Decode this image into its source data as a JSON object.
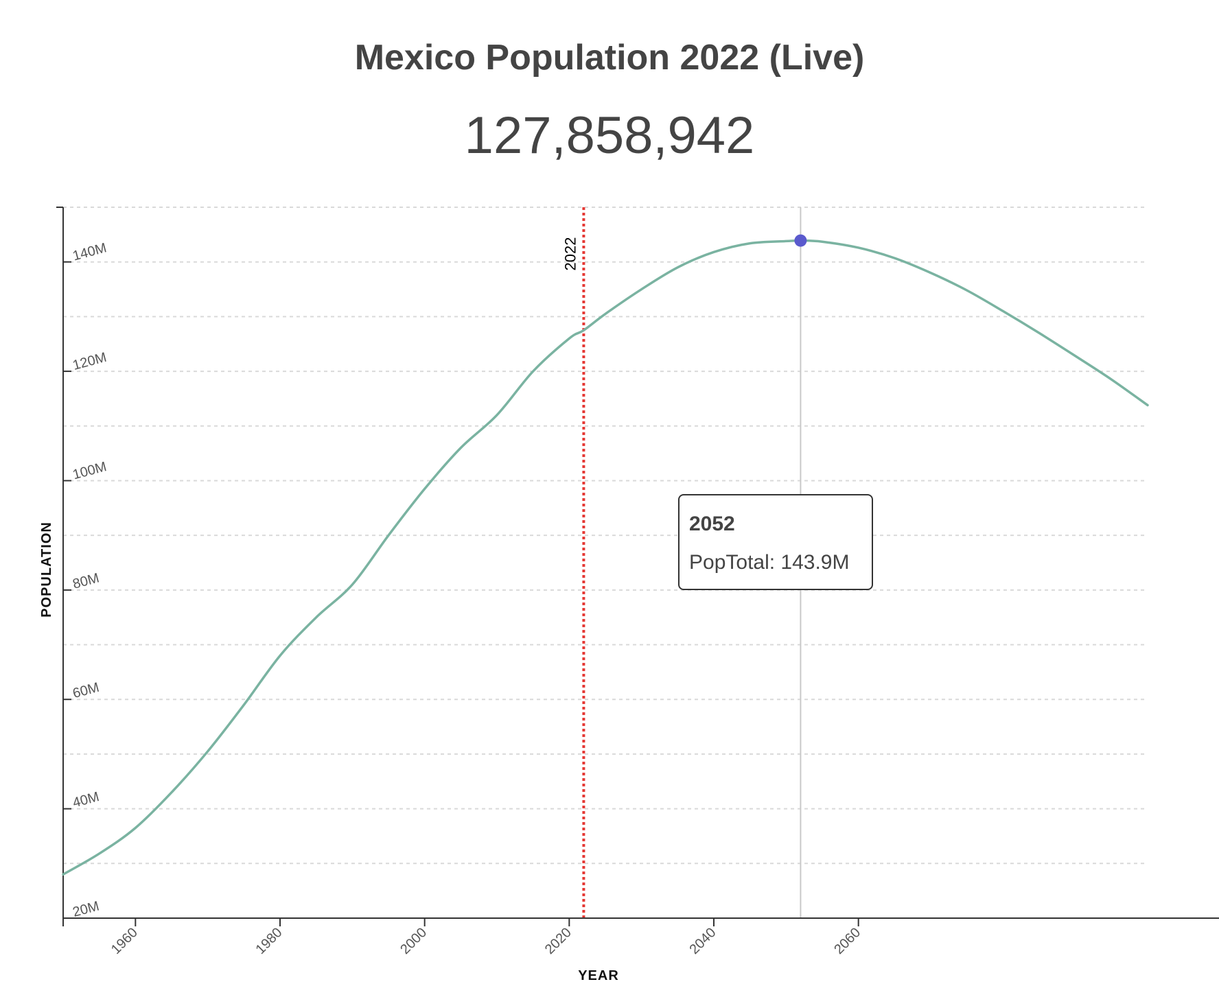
{
  "header": {
    "title": "Mexico Population 2022 (Live)",
    "live_count": "127,858,942"
  },
  "tooltip": {
    "year": "2052",
    "label": "PopTotal",
    "value": "143.9M"
  },
  "colors": {
    "line": "#7ab3a1",
    "marker": "#5a5acd",
    "current_year_line": "#e53935",
    "hover_line": "#c8c8c8",
    "grid": "#d9d9d9",
    "axis": "#333333",
    "text": "#444444"
  },
  "chart_data": {
    "type": "line",
    "title": "Mexico Population 2022 (Live)",
    "xlabel": "YEAR",
    "ylabel": "POPULATION",
    "xlim": [
      1950,
      2100
    ],
    "ylim": [
      20000000,
      150000000
    ],
    "x_ticks": [
      1960,
      1980,
      2000,
      2020,
      2040,
      2060
    ],
    "x_tick_labels": [
      "1960",
      "1980",
      "2000",
      "2020",
      "2040",
      "2060"
    ],
    "y_ticks": [
      20000000,
      40000000,
      60000000,
      80000000,
      100000000,
      120000000,
      140000000
    ],
    "y_tick_labels": [
      "20M",
      "40M",
      "60M",
      "80M",
      "100M",
      "120M",
      "140M"
    ],
    "y_gridlines": [
      30000000,
      40000000,
      50000000,
      60000000,
      70000000,
      80000000,
      90000000,
      100000000,
      110000000,
      120000000,
      130000000,
      140000000,
      150000000
    ],
    "grid": true,
    "current_year": 2022,
    "current_year_label": "2022",
    "highlight": {
      "x": 2052,
      "y": 143900000
    },
    "series": [
      {
        "name": "PopTotal",
        "x": [
          1950,
          1955,
          1960,
          1965,
          1970,
          1975,
          1980,
          1985,
          1990,
          1995,
          2000,
          2005,
          2010,
          2015,
          2020,
          2022,
          2025,
          2030,
          2035,
          2040,
          2045,
          2050,
          2052,
          2055,
          2060,
          2065,
          2070,
          2075,
          2080,
          2085,
          2090,
          2095,
          2100
        ],
        "values": [
          28000000,
          31800000,
          36500000,
          43000000,
          50500000,
          59000000,
          68000000,
          75000000,
          81000000,
          90000000,
          98500000,
          106000000,
          112000000,
          120000000,
          126000000,
          127500000,
          130500000,
          135000000,
          139000000,
          141800000,
          143400000,
          143800000,
          143900000,
          143700000,
          142600000,
          140700000,
          138000000,
          134800000,
          131000000,
          127000000,
          122800000,
          118500000,
          113800000
        ]
      }
    ]
  }
}
